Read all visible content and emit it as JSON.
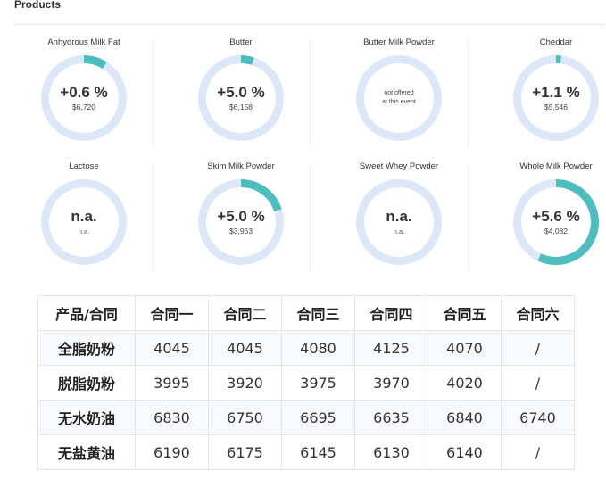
{
  "section_title": "Products",
  "products": [
    {
      "name": "Anhydrous Milk Fat",
      "change": "+0.6 %",
      "price": "$6,720",
      "progress": 0.09,
      "available": true
    },
    {
      "name": "Butter",
      "change": "+5.0 %",
      "price": "$6,158",
      "progress": 0.05,
      "available": true
    },
    {
      "name": "Butter Milk Powder",
      "offer_line1": "not offered",
      "offer_line2": "at this event",
      "progress": 0,
      "available": false
    },
    {
      "name": "Cheddar",
      "change": "+1.1 %",
      "price": "$5,546",
      "progress": 0.02,
      "available": true
    },
    {
      "name": "Lactose",
      "na": "n.a.",
      "na_sub": "n.a.",
      "progress": 0,
      "available": false
    },
    {
      "name": "Skim Milk Powder",
      "change": "+5.0 %",
      "price": "$3,963",
      "progress": 0.2,
      "available": true
    },
    {
      "name": "Sweet Whey Powder",
      "na": "n.a.",
      "na_sub": "n.a.",
      "progress": 0,
      "available": false
    },
    {
      "name": "Whole Milk Powder",
      "change": "+5.6 %",
      "price": "$4,082",
      "progress": 0.57,
      "available": true
    }
  ],
  "colors": {
    "ring_track": "#dce8f8",
    "ring_fill": "#4dbdbd"
  },
  "contract_table": {
    "headers": [
      "产品/合同",
      "合同一",
      "合同二",
      "合同三",
      "合同四",
      "合同五",
      "合同六"
    ],
    "rows": [
      [
        "全脂奶粉",
        "4045",
        "4045",
        "4080",
        "4125",
        "4070",
        "/"
      ],
      [
        "脱脂奶粉",
        "3995",
        "3920",
        "3975",
        "3970",
        "4020",
        "/"
      ],
      [
        "无水奶油",
        "6830",
        "6750",
        "6695",
        "6635",
        "6840",
        "6740"
      ],
      [
        "无盐黄油",
        "6190",
        "6175",
        "6145",
        "6130",
        "6140",
        "/"
      ]
    ]
  }
}
